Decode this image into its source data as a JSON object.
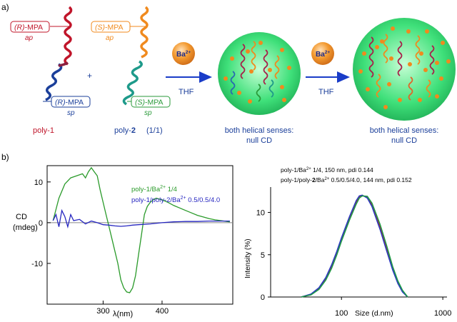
{
  "figure": {
    "panel_a_label": "a)",
    "panel_b_label": "b)",
    "poly1": {
      "tag_ap_r": "(R)",
      "tag_ap_mpa": "-MPA",
      "tag_ap_sub": "ap",
      "tag_sp_r": "(R)",
      "tag_sp_mpa": "-MPA",
      "tag_sp_sub": "sp",
      "name": "poly-1"
    },
    "poly2": {
      "tag_ap_s": "(S)",
      "tag_ap_mpa": "-MPA",
      "tag_ap_sub": "ap",
      "tag_sp_s": "(S)",
      "tag_sp_mpa": "-MPA",
      "tag_sp_sub": "sp",
      "name_prefix": "poly-",
      "name_num": "2",
      "ratio": "(1/1)"
    },
    "plus": "+",
    "ion_ba": "Ba",
    "ion_charge": "2+",
    "solvent": "THF",
    "caption1_line1": "both helical senses:",
    "caption1_line2": "null CD",
    "caption2_line1": "both helical senses:",
    "caption2_line2": "null CD",
    "colors": {
      "red": "#c0152a",
      "orange": "#f08a1e",
      "blue": "#1b3f9a",
      "green": "#2a9a3a",
      "arrow": "#1a3cc8",
      "sphere": "#3fe07a",
      "ba": "#f08a1e"
    }
  },
  "chart_cd": {
    "type": "line",
    "ylabel_line1": "CD",
    "ylabel_line2": "(mdeg)",
    "xlabel": "λ(nm)",
    "xticks": [
      300,
      400
    ],
    "yticks": [
      10,
      0,
      -10
    ],
    "xlim": [
      205,
      520
    ],
    "ylim": [
      -20,
      14
    ],
    "legend": [
      {
        "text_a": "poly-1/Ba",
        "sup": "2+",
        "text_b": " 1/4",
        "color": "#2a9a2a"
      },
      {
        "text_a": "poly-1/poly-2/Ba",
        "sup": "2+",
        "text_b": " 0.5/0.5/4.0",
        "color": "#2626c0"
      }
    ],
    "series": [
      {
        "color": "#2a9a2a",
        "x": [
          215,
          225,
          235,
          245,
          255,
          265,
          270,
          275,
          280,
          285,
          290,
          295,
          300,
          305,
          310,
          315,
          320,
          325,
          330,
          335,
          340,
          345,
          350,
          355,
          360,
          365,
          370,
          375,
          380,
          385,
          390,
          395,
          400,
          410,
          420,
          430,
          440,
          450,
          460,
          470,
          480,
          490,
          500,
          510,
          515
        ],
        "y": [
          0.5,
          6,
          9.5,
          11,
          11.5,
          12,
          11,
          12.5,
          13.5,
          12.5,
          11.5,
          8,
          5,
          2,
          -1,
          -4,
          -7,
          -10,
          -14,
          -16,
          -17,
          -17.2,
          -16,
          -13,
          -8,
          -3,
          2,
          4,
          5,
          5.6,
          6,
          5.8,
          5.6,
          5,
          4.2,
          3.6,
          3,
          2.4,
          1.8,
          1.4,
          1,
          0.7,
          0.5,
          0.3,
          0.2
        ]
      },
      {
        "color": "#2626c0",
        "x": [
          215,
          220,
          225,
          230,
          235,
          240,
          245,
          250,
          260,
          270,
          280,
          290,
          300,
          310,
          320,
          330,
          340,
          350,
          360,
          380,
          400,
          420,
          440,
          460,
          480,
          500,
          515
        ],
        "y": [
          0.5,
          2,
          -1,
          3,
          1.5,
          -1,
          2,
          0.5,
          0.8,
          -0.3,
          0.4,
          0,
          -0.5,
          -0.6,
          -0.8,
          -0.9,
          -0.8,
          -0.6,
          -0.5,
          -0.3,
          0,
          0.2,
          0.3,
          0.3,
          0.4,
          0.4,
          0.4
        ]
      }
    ]
  },
  "chart_dls": {
    "type": "line",
    "ylabel": "Intensity (%)",
    "xlabel": "Size (d.nm)",
    "xscale": "log",
    "xticks": [
      100,
      1000
    ],
    "yticks": [
      10,
      5,
      0
    ],
    "xlim": [
      20,
      1100
    ],
    "ylim": [
      0,
      13
    ],
    "legend_line1": {
      "text_a": "poly-1/Ba",
      "sup": "2+",
      "text_b": " 1/4, 150 nm, pdi 0.144"
    },
    "legend_line2": {
      "text_a": "poly-1/poly-",
      "bold": "2",
      "text_b": "/Ba",
      "sup": "2+",
      "text_c": " 0.5/0.5/4.0, 144 nm, pdi 0.152"
    },
    "series": [
      {
        "color": "#d11a1a",
        "x": [
          40,
          50,
          60,
          70,
          80,
          90,
          100,
          120,
          140,
          150,
          160,
          180,
          200,
          240,
          280,
          320,
          360,
          400,
          450
        ],
        "y": [
          0,
          0.3,
          1,
          2.2,
          3.6,
          5.2,
          6.8,
          9.3,
          11.2,
          11.8,
          12.0,
          11.8,
          10.9,
          8.3,
          5.7,
          3.4,
          1.8,
          0.7,
          0
        ]
      },
      {
        "color": "#2b3ac2",
        "x": [
          40,
          50,
          60,
          70,
          80,
          90,
          100,
          120,
          140,
          150,
          160,
          180,
          200,
          240,
          280,
          320,
          360,
          400,
          450
        ],
        "y": [
          0,
          0.35,
          1.1,
          2.3,
          3.8,
          5.4,
          7.0,
          9.5,
          11.4,
          11.95,
          12.05,
          11.7,
          10.7,
          8.0,
          5.4,
          3.2,
          1.6,
          0.6,
          0
        ]
      },
      {
        "color": "#1e9a48",
        "x": [
          40,
          50,
          60,
          70,
          80,
          90,
          100,
          120,
          140,
          150,
          160,
          180,
          200,
          240,
          280,
          320,
          360,
          400,
          450
        ],
        "y": [
          0,
          0.25,
          0.9,
          2.0,
          3.4,
          5.0,
          6.6,
          9.1,
          11.0,
          11.7,
          11.95,
          11.9,
          11.1,
          8.6,
          6.0,
          3.6,
          1.9,
          0.8,
          0
        ]
      }
    ]
  }
}
